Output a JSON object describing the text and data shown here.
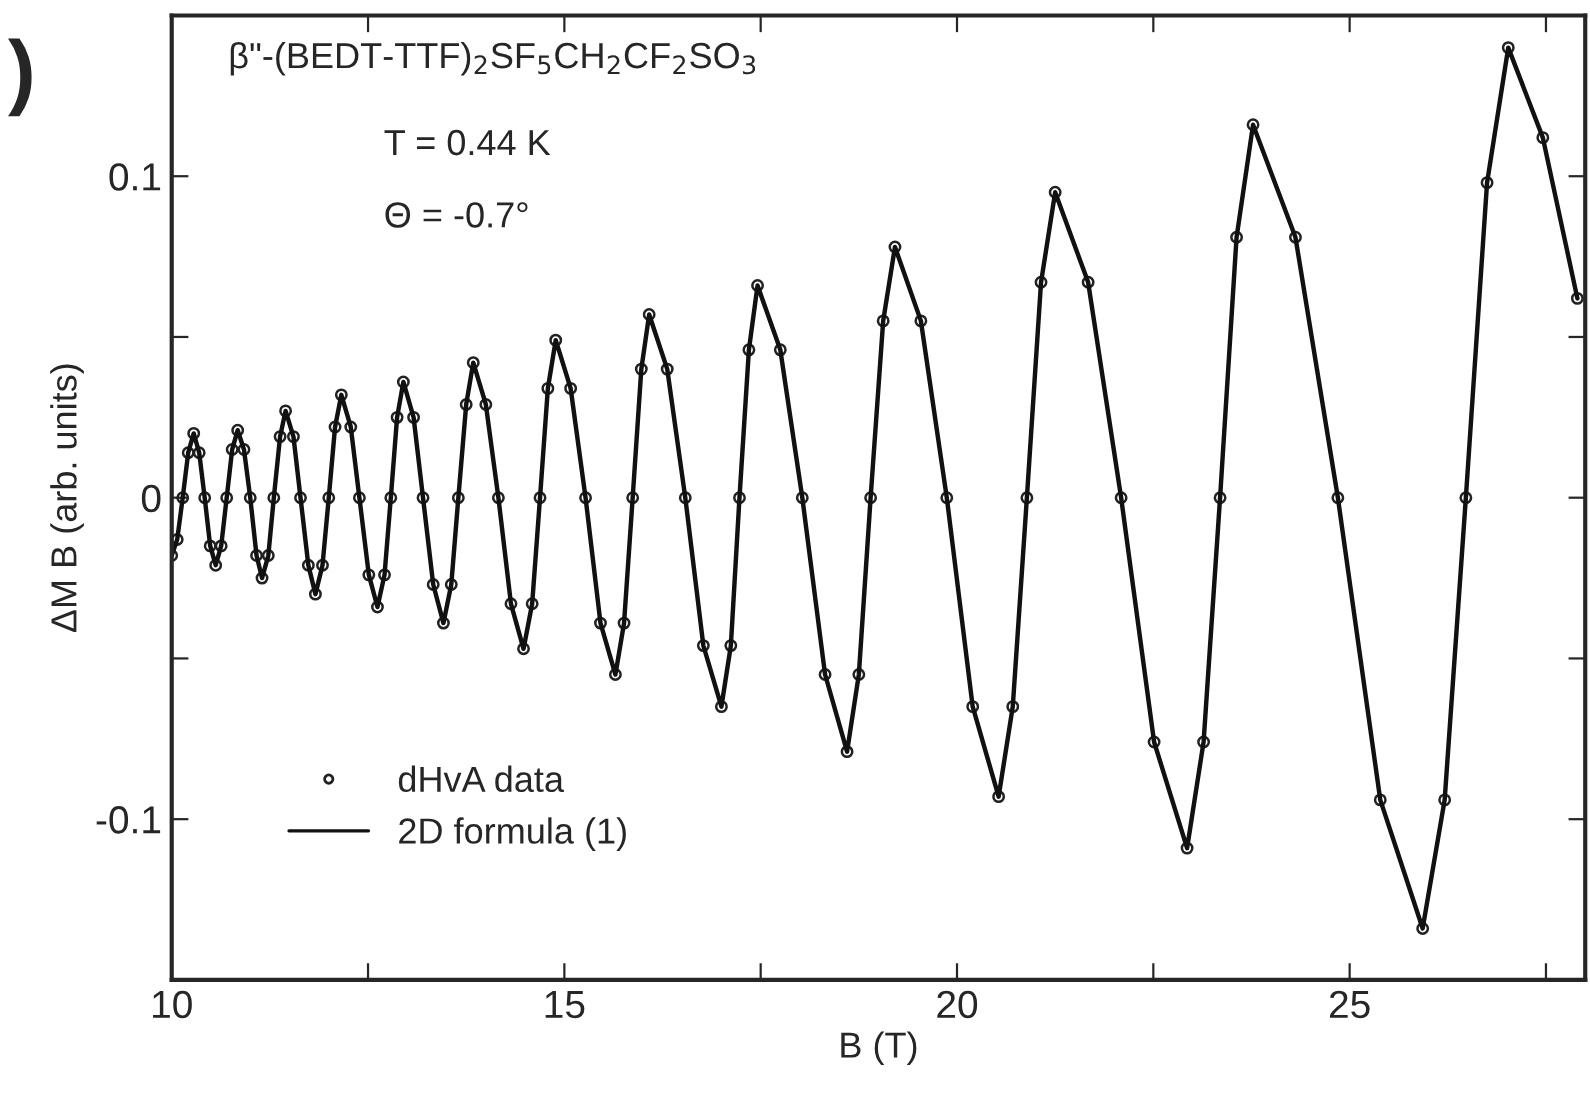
{
  "chart_data": {
    "type": "line",
    "xlabel": "B (T)",
    "ylabel": "ΔM B (arb. units)",
    "x": [
      10.0,
      10.07,
      10.14,
      10.21,
      10.28,
      10.35,
      10.42,
      10.49,
      10.56,
      10.63,
      10.7,
      10.77,
      10.84,
      10.92,
      11.0,
      11.08,
      11.15,
      11.23,
      11.3,
      11.38,
      11.45,
      11.55,
      11.64,
      11.74,
      11.83,
      11.92,
      12.0,
      12.08,
      12.16,
      12.28,
      12.39,
      12.51,
      12.62,
      12.71,
      12.79,
      12.87,
      12.95,
      13.08,
      13.2,
      13.33,
      13.46,
      13.56,
      13.65,
      13.75,
      13.84,
      14.0,
      14.16,
      14.32,
      14.48,
      14.59,
      14.69,
      14.79,
      14.89,
      15.08,
      15.27,
      15.46,
      15.65,
      15.76,
      15.87,
      15.98,
      16.08,
      16.31,
      16.54,
      16.77,
      17.0,
      17.12,
      17.23,
      17.35,
      17.46,
      17.75,
      18.03,
      18.32,
      18.6,
      18.75,
      18.9,
      19.06,
      19.21,
      19.54,
      19.87,
      20.2,
      20.53,
      20.71,
      20.89,
      21.07,
      21.25,
      21.67,
      22.09,
      22.51,
      22.93,
      23.14,
      23.35,
      23.56,
      23.77,
      24.31,
      24.85,
      25.39,
      25.93,
      26.21,
      26.48,
      26.75,
      27.02,
      27.46,
      27.9
    ],
    "series": [
      {
        "name": "dHvA data",
        "type": "scatter",
        "marker": "circle",
        "color": "#222222",
        "values": [
          -0.018,
          -0.013,
          0,
          0.014,
          0.02,
          0.014,
          0,
          -0.015,
          -0.021,
          -0.015,
          0,
          0.015,
          0.021,
          0.015,
          0,
          -0.018,
          -0.025,
          -0.018,
          0,
          0.019,
          0.027,
          0.019,
          0,
          -0.021,
          -0.03,
          -0.021,
          0,
          0.022,
          0.032,
          0.022,
          0,
          -0.024,
          -0.034,
          -0.024,
          0,
          0.025,
          0.036,
          0.025,
          0,
          -0.027,
          -0.039,
          -0.027,
          0,
          0.029,
          0.042,
          0.029,
          0,
          -0.033,
          -0.047,
          -0.033,
          0,
          0.034,
          0.049,
          0.034,
          0,
          -0.039,
          -0.055,
          -0.039,
          0,
          0.04,
          0.057,
          0.04,
          0,
          -0.046,
          -0.065,
          -0.046,
          0,
          0.046,
          0.066,
          0.046,
          0,
          -0.055,
          -0.079,
          -0.055,
          0,
          0.055,
          0.078,
          0.055,
          0,
          -0.065,
          -0.093,
          -0.065,
          0,
          0.067,
          0.095,
          0.067,
          0,
          -0.076,
          -0.109,
          -0.076,
          0,
          0.081,
          0.116,
          0.081,
          0,
          -0.094,
          -0.134,
          -0.094,
          0,
          0.098,
          0.14,
          0.112,
          0.062
        ]
      },
      {
        "name": "2D formula (1)",
        "line_style": "solid",
        "color": "#111111",
        "values": [
          -0.018,
          -0.013,
          0,
          0.014,
          0.02,
          0.014,
          0,
          -0.015,
          -0.021,
          -0.015,
          0,
          0.015,
          0.021,
          0.015,
          0,
          -0.018,
          -0.025,
          -0.018,
          0,
          0.019,
          0.027,
          0.019,
          0,
          -0.021,
          -0.03,
          -0.021,
          0,
          0.022,
          0.032,
          0.022,
          0,
          -0.024,
          -0.034,
          -0.024,
          0,
          0.025,
          0.036,
          0.025,
          0,
          -0.027,
          -0.039,
          -0.027,
          0,
          0.029,
          0.042,
          0.029,
          0,
          -0.033,
          -0.047,
          -0.033,
          0,
          0.034,
          0.049,
          0.034,
          0,
          -0.039,
          -0.055,
          -0.039,
          0,
          0.04,
          0.057,
          0.04,
          0,
          -0.046,
          -0.065,
          -0.046,
          0,
          0.046,
          0.066,
          0.046,
          0,
          -0.055,
          -0.079,
          -0.055,
          0,
          0.055,
          0.078,
          0.055,
          0,
          -0.065,
          -0.093,
          -0.065,
          0,
          0.067,
          0.095,
          0.067,
          0,
          -0.076,
          -0.109,
          -0.076,
          0,
          0.081,
          0.116,
          0.081,
          0,
          -0.094,
          -0.134,
          -0.094,
          0,
          0.098,
          0.14,
          0.112,
          0.062
        ]
      }
    ],
    "xlim": [
      10,
      28
    ],
    "xticks": [
      10,
      {
        "value": 12.5,
        "label": null
      },
      15,
      {
        "value": 17.5,
        "label": null
      },
      20,
      {
        "value": 22.5,
        "label": null
      },
      25,
      {
        "value": 27.5,
        "label": null
      }
    ],
    "ylim": [
      -0.15,
      0.15
    ],
    "yticks": [
      {
        "value": -0.1,
        "label": "-0.1"
      },
      {
        "value": -0.05,
        "label": null
      },
      0,
      {
        "value": 0.05,
        "label": null
      },
      0.1
    ],
    "grid": false,
    "legend": "bottom left",
    "annotations": [
      ")",
      "β\"-(BEDT-TTF)$_{2}$SF$_{5}$CH$_{2}$CF$_{2}$SO$_{3}$",
      "T = 0.44 K",
      "Θ = -0.7°"
    ]
  }
}
